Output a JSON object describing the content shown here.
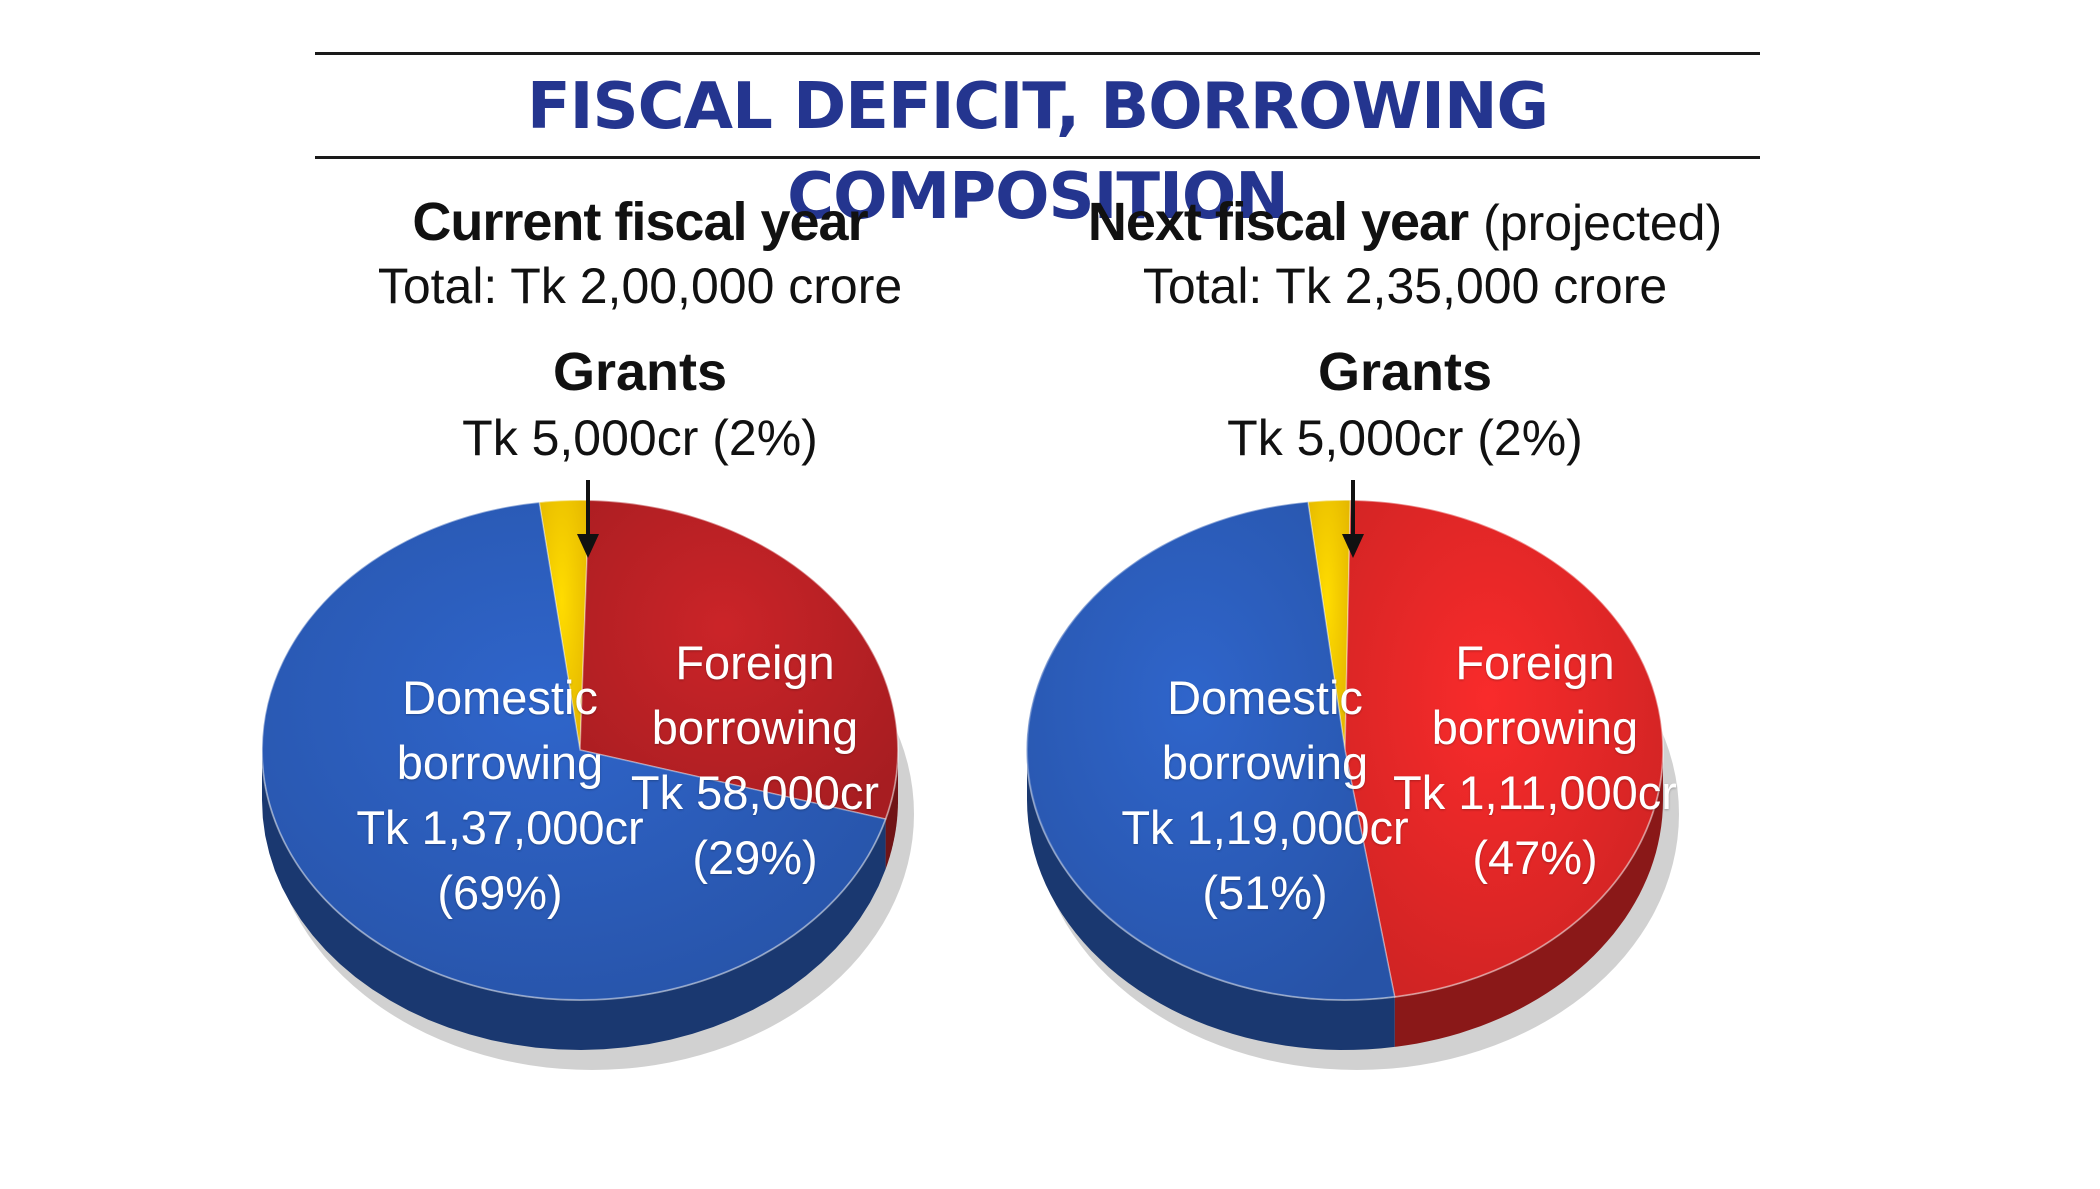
{
  "title": "FISCAL DEFICIT, BORROWING COMPOSITION",
  "colors": {
    "domestic": "#2a5ab5",
    "foreign": "#de2626",
    "foreign_left": "#b52024",
    "grants": "#f6c400",
    "title": "#24358f"
  },
  "chart_data": [
    {
      "type": "pie",
      "title": "Current fiscal year",
      "subtitle": "Total: Tk 2,00,000 crore",
      "callout": {
        "title": "Grants",
        "value": "Tk 5,000cr (2%)"
      },
      "slices": [
        {
          "name": "Grants",
          "value": 5000,
          "percent": 2,
          "label_amount": "",
          "label_percent": ""
        },
        {
          "name": "Foreign borrowing",
          "line1": "Foreign",
          "line2": "borrowing",
          "value": 58000,
          "percent": 29,
          "label_amount": "Tk 58,000cr",
          "label_percent": "(29%)"
        },
        {
          "name": "Domestic borrowing",
          "line1": "Domestic",
          "line2": "borrowing",
          "value": 137000,
          "percent": 69,
          "label_amount": "Tk 1,37,000cr",
          "label_percent": "(69%)"
        }
      ]
    },
    {
      "type": "pie",
      "title": "Next fiscal year",
      "title_suffix": "(projected)",
      "subtitle": "Total: Tk 2,35,000 crore",
      "callout": {
        "title": "Grants",
        "value": "Tk 5,000cr (2%)"
      },
      "slices": [
        {
          "name": "Grants",
          "value": 5000,
          "percent": 2,
          "label_amount": "",
          "label_percent": ""
        },
        {
          "name": "Foreign borrowing",
          "line1": "Foreign",
          "line2": "borrowing",
          "value": 111000,
          "percent": 47,
          "label_amount": "Tk 1,11,000cr",
          "label_percent": "(47%)"
        },
        {
          "name": "Domestic borrowing",
          "line1": "Domestic",
          "line2": "borrowing",
          "value": 119000,
          "percent": 51,
          "label_amount": "Tk 1,19,000cr",
          "label_percent": "(51%)"
        }
      ]
    }
  ]
}
